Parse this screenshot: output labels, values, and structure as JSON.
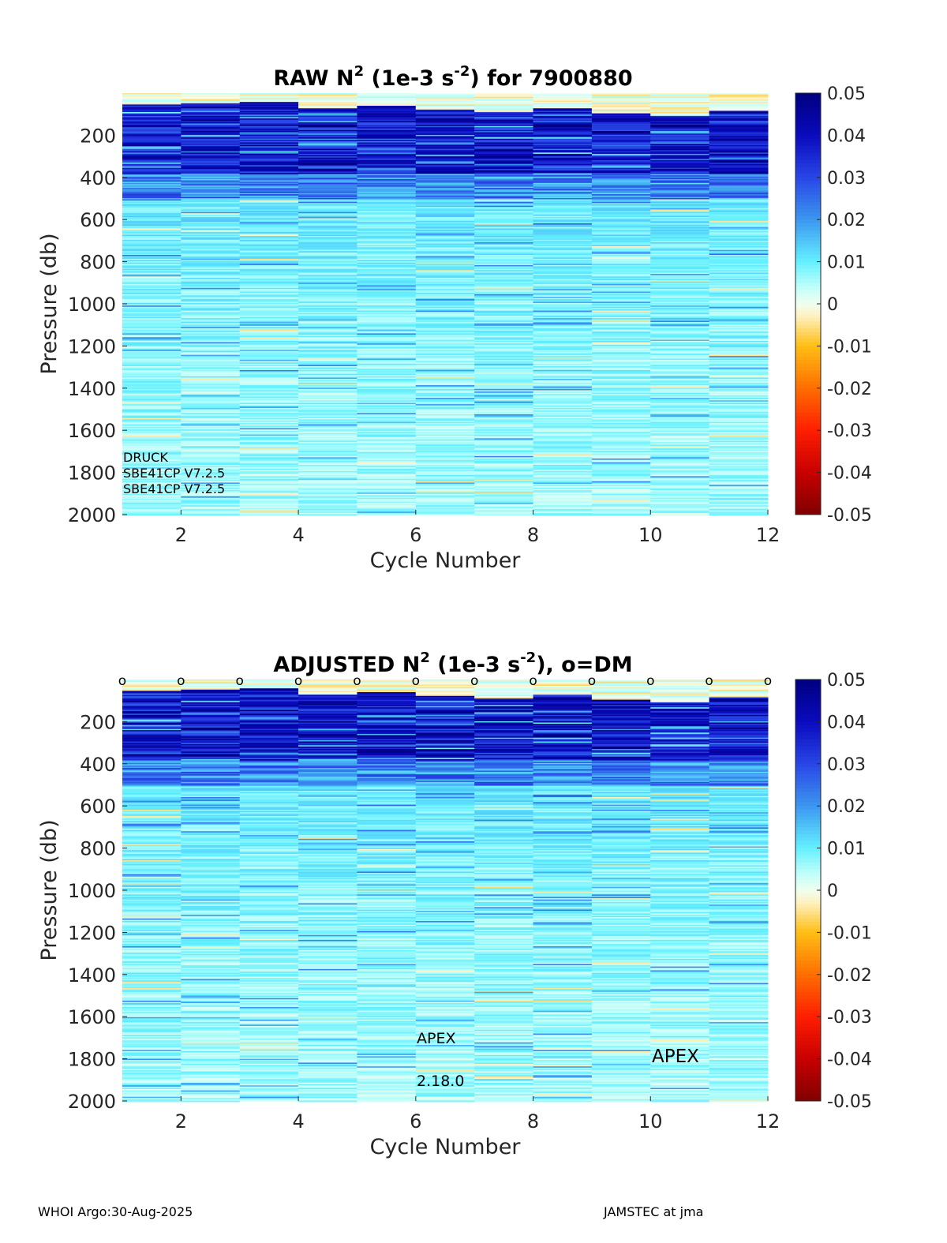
{
  "chart_data": [
    {
      "type": "heatmap",
      "title_prefix": "RAW N",
      "title_sup1": "2",
      "title_mid": " (1e-3 s",
      "title_sup2": "-2",
      "title_suffix": ") for 7900880",
      "xlabel": "Cycle Number",
      "ylabel": "Pressure (db)",
      "x_ticks": [
        "2",
        "4",
        "6",
        "8",
        "10",
        "12"
      ],
      "y_ticks": [
        "200",
        "400",
        "600",
        "800",
        "1000",
        "1200",
        "1400",
        "1600",
        "1800",
        "2000"
      ],
      "xlim": [
        1,
        12
      ],
      "ylim": [
        0,
        2000
      ],
      "cycles": [
        1,
        2,
        3,
        4,
        5,
        6,
        7,
        8,
        9,
        10,
        11
      ],
      "mixed_layer_bottom_db": [
        55,
        50,
        45,
        75,
        65,
        80,
        95,
        75,
        100,
        110,
        85
      ],
      "colorbar_ticks": [
        "0.05",
        "0.04",
        "0.03",
        "0.02",
        "0.01",
        "0",
        "-0.01",
        "-0.02",
        "-0.03",
        "-0.04",
        "-0.05"
      ],
      "clim": [
        -0.05,
        0.05
      ],
      "annotations": [
        "DRUCK",
        "SBE41CP V7.2.5",
        "SBE41CP V7.2.5"
      ]
    },
    {
      "type": "heatmap",
      "title_prefix": "ADJUSTED N",
      "title_sup1": "2",
      "title_mid": " (1e-3 s",
      "title_sup2": "-2",
      "title_suffix": "), o=DM",
      "xlabel": "Cycle Number",
      "ylabel": "Pressure (db)",
      "x_ticks": [
        "2",
        "4",
        "6",
        "8",
        "10",
        "12"
      ],
      "y_ticks": [
        "200",
        "400",
        "600",
        "800",
        "1000",
        "1200",
        "1400",
        "1600",
        "1800",
        "2000"
      ],
      "xlim": [
        1,
        12
      ],
      "ylim": [
        0,
        2000
      ],
      "cycles": [
        1,
        2,
        3,
        4,
        5,
        6,
        7,
        8,
        9,
        10,
        11
      ],
      "mixed_layer_bottom_db": [
        55,
        50,
        45,
        75,
        65,
        80,
        95,
        75,
        100,
        110,
        85
      ],
      "dm_marker": "o",
      "dm_marker_cycles": [
        1,
        2,
        3,
        4,
        5,
        6,
        7,
        8,
        9,
        10,
        11,
        12
      ],
      "colorbar_ticks": [
        "0.05",
        "0.04",
        "0.03",
        "0.02",
        "0.01",
        "0",
        "-0.01",
        "-0.02",
        "-0.03",
        "-0.04",
        "-0.05"
      ],
      "clim": [
        -0.05,
        0.05
      ],
      "annotations": [
        "APEX",
        "2.18.0",
        "APEX"
      ]
    }
  ],
  "footer": {
    "left": "WHOI Argo:30-Aug-2025",
    "right": "JAMSTEC at jma"
  }
}
